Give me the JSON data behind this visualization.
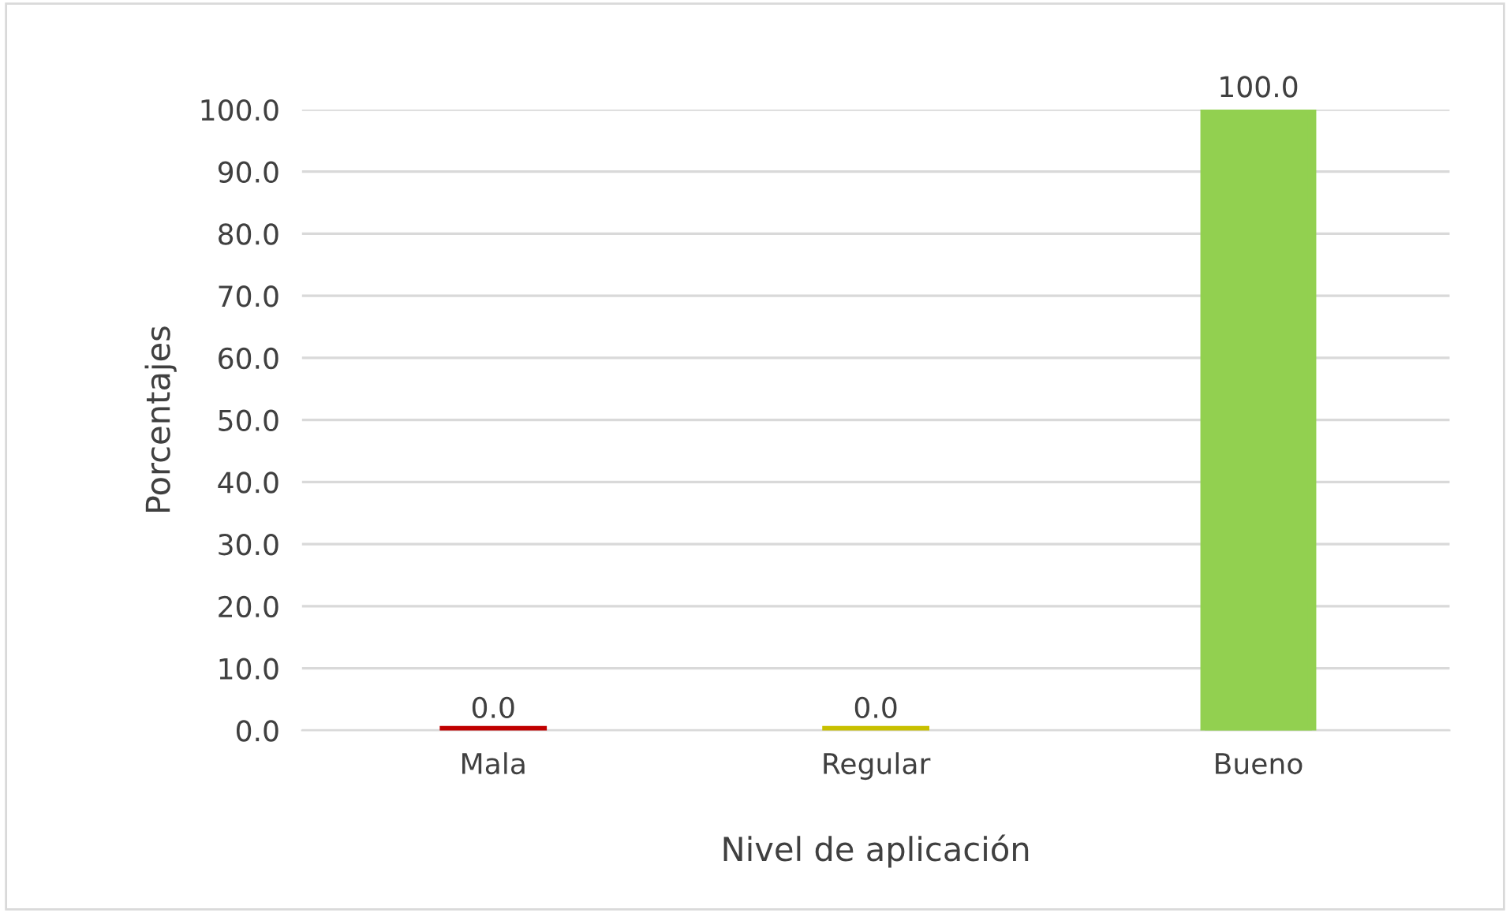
{
  "chart_data": {
    "type": "bar",
    "xlabel": "Nivel de aplicación",
    "ylabel": "Porcentajes",
    "categories": [
      "Mala",
      "Regular",
      "Bueno"
    ],
    "values": [
      0,
      0,
      100
    ],
    "colors": [
      "#c00000",
      "#c8c000",
      "#92d050"
    ],
    "value_labels": [
      "0.0",
      "0.0",
      "100.0"
    ],
    "ylim": [
      0,
      100
    ],
    "yticks": [
      {
        "value": 0,
        "label": "0.0"
      },
      {
        "value": 10,
        "label": "10.0"
      },
      {
        "value": 20,
        "label": "20.0"
      },
      {
        "value": 30,
        "label": "30.0"
      },
      {
        "value": 40,
        "label": "40.0"
      },
      {
        "value": 50,
        "label": "50.0"
      },
      {
        "value": 60,
        "label": "60.0"
      },
      {
        "value": 70,
        "label": "70.0"
      },
      {
        "value": 80,
        "label": "80.0"
      },
      {
        "value": 90,
        "label": "90.0"
      },
      {
        "value": 100,
        "label": "100.0"
      }
    ],
    "grid": "y"
  }
}
